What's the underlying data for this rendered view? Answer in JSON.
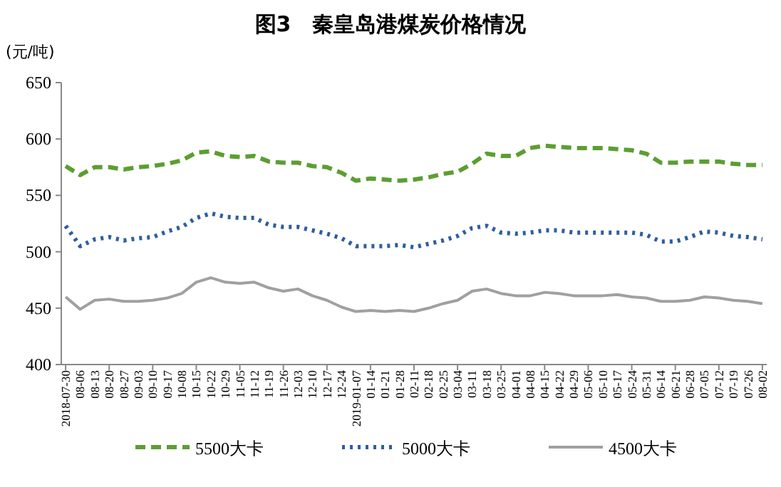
{
  "chart_data": {
    "type": "line",
    "title": "图3　秦皇岛港煤炭价格情况",
    "ylabel": "(元/吨)",
    "categories": [
      "2018-07-30",
      "08-06",
      "08-13",
      "08-20",
      "08-27",
      "09-03",
      "09-10",
      "09-17",
      "10-08",
      "10-15",
      "10-22",
      "10-29",
      "11-05",
      "11-12",
      "11-19",
      "11-26",
      "12-03",
      "12-10",
      "12-17",
      "12-24",
      "2019-01-07",
      "01-14",
      "01-21",
      "01-28",
      "02-11",
      "02-18",
      "02-25",
      "03-04",
      "03-11",
      "03-18",
      "03-25",
      "04-01",
      "04-08",
      "04-15",
      "04-22",
      "04-29",
      "05-06",
      "05-10",
      "05-17",
      "05-24",
      "05-31",
      "06-14",
      "06-21",
      "06-28",
      "07-05",
      "07-12",
      "07-19",
      "07-26",
      "08-02"
    ],
    "series": [
      {
        "name": "5500大卡",
        "color": "#5c9e32",
        "line_style": "dashed",
        "values": [
          576,
          568,
          575,
          575,
          573,
          575,
          576,
          578,
          581,
          588,
          589,
          585,
          584,
          585,
          580,
          579,
          579,
          576,
          575,
          570,
          563,
          565,
          564,
          563,
          564,
          566,
          569,
          571,
          578,
          587,
          585,
          585,
          592,
          594,
          593,
          592,
          592,
          592,
          591,
          590,
          587,
          579,
          579,
          580,
          580,
          580,
          578,
          577,
          577
        ]
      },
      {
        "name": "5000大卡",
        "color": "#2e5e9e",
        "line_style": "dotted",
        "values": [
          523,
          505,
          511,
          513,
          510,
          512,
          513,
          518,
          522,
          530,
          534,
          531,
          530,
          530,
          524,
          522,
          522,
          519,
          516,
          512,
          505,
          505,
          505,
          506,
          504,
          507,
          510,
          514,
          521,
          523,
          517,
          516,
          517,
          519,
          519,
          517,
          517,
          517,
          517,
          517,
          515,
          509,
          509,
          513,
          518,
          517,
          514,
          513,
          511
        ]
      },
      {
        "name": "4500大卡",
        "color": "#a0a0a0",
        "line_style": "solid",
        "values": [
          460,
          449,
          457,
          458,
          456,
          456,
          457,
          459,
          463,
          473,
          477,
          473,
          472,
          473,
          468,
          465,
          467,
          461,
          457,
          451,
          447,
          448,
          447,
          448,
          447,
          450,
          454,
          457,
          465,
          467,
          463,
          461,
          461,
          464,
          463,
          461,
          461,
          461,
          462,
          460,
          459,
          456,
          456,
          457,
          460,
          459,
          457,
          456,
          454
        ]
      }
    ],
    "ylim": [
      400,
      650
    ],
    "yticks": [
      400,
      450,
      500,
      550,
      600,
      650
    ],
    "grid": false,
    "legend": "bottom"
  }
}
